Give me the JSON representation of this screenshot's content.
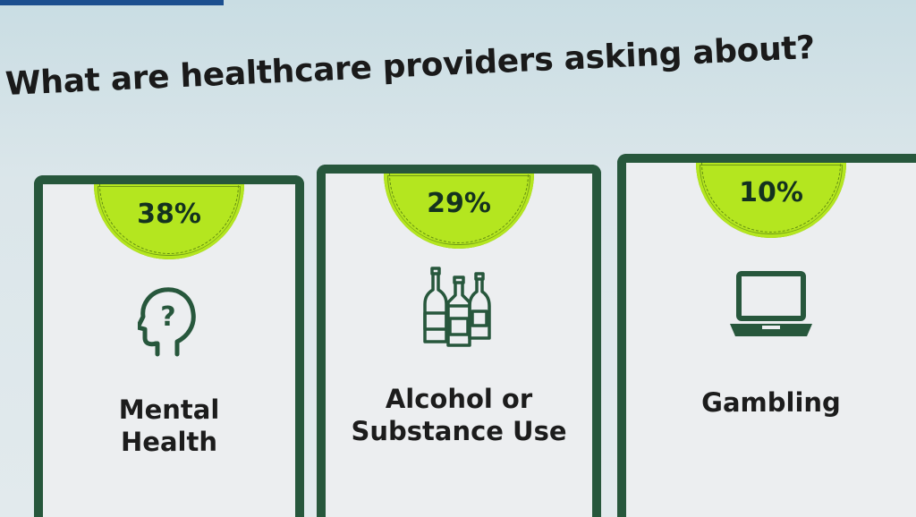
{
  "slide": {
    "title": "What are healthcare providers asking about?"
  },
  "cards": [
    {
      "percent": "38%",
      "label_lines": [
        "Mental",
        "Health"
      ],
      "icon": "head-question-icon"
    },
    {
      "percent": "29%",
      "label_lines": [
        "Alcohol or",
        "Substance Use"
      ],
      "icon": "bottles-icon"
    },
    {
      "percent": "10%",
      "label_lines": [
        "Gambling"
      ],
      "icon": "laptop-icon"
    }
  ],
  "colors": {
    "card_border": "#27573c",
    "badge_fill": "#b4e61f",
    "card_background": "#eceef0",
    "slide_background": "#dbe6ea"
  }
}
